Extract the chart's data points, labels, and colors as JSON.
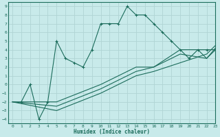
{
  "bg_color": "#c8eaea",
  "grid_color": "#b0d4d4",
  "line_color": "#1a6b5a",
  "xlabel": "Humidex (Indice chaleur)",
  "xlim": [
    -0.5,
    23
  ],
  "ylim": [
    -4.5,
    9.5
  ],
  "xticks": [
    0,
    1,
    2,
    3,
    4,
    5,
    6,
    7,
    8,
    9,
    10,
    11,
    12,
    13,
    14,
    15,
    16,
    17,
    18,
    19,
    20,
    21,
    22,
    23
  ],
  "yticks": [
    -4,
    -3,
    -2,
    -1,
    0,
    1,
    2,
    3,
    4,
    5,
    6,
    7,
    8,
    9
  ],
  "line1_x": [
    1,
    2,
    3,
    4,
    5,
    6,
    7,
    8,
    9,
    10,
    11,
    12,
    13,
    14,
    15,
    16,
    17,
    18,
    19,
    20,
    21,
    22,
    23
  ],
  "line1_y": [
    -2,
    0,
    -4,
    -2,
    5,
    3,
    2.5,
    2,
    4,
    7,
    7,
    7,
    9,
    8,
    8,
    7,
    6,
    5,
    4,
    3,
    4,
    4,
    4
  ],
  "line2_x": [
    0,
    5,
    10,
    14,
    16,
    19,
    21,
    22,
    23
  ],
  "line2_y": [
    -2,
    -2,
    0,
    2,
    2,
    4,
    4,
    3,
    4
  ],
  "line3_x": [
    0,
    5,
    10,
    14,
    16,
    19,
    22,
    23
  ],
  "line3_y": [
    -2,
    -2.5,
    -0.5,
    1.5,
    2,
    3.5,
    3,
    4.2
  ],
  "line4_x": [
    0,
    5,
    10,
    14,
    16,
    22,
    23
  ],
  "line4_y": [
    -2,
    -3,
    -1,
    1,
    1.5,
    3.5,
    4.5
  ]
}
